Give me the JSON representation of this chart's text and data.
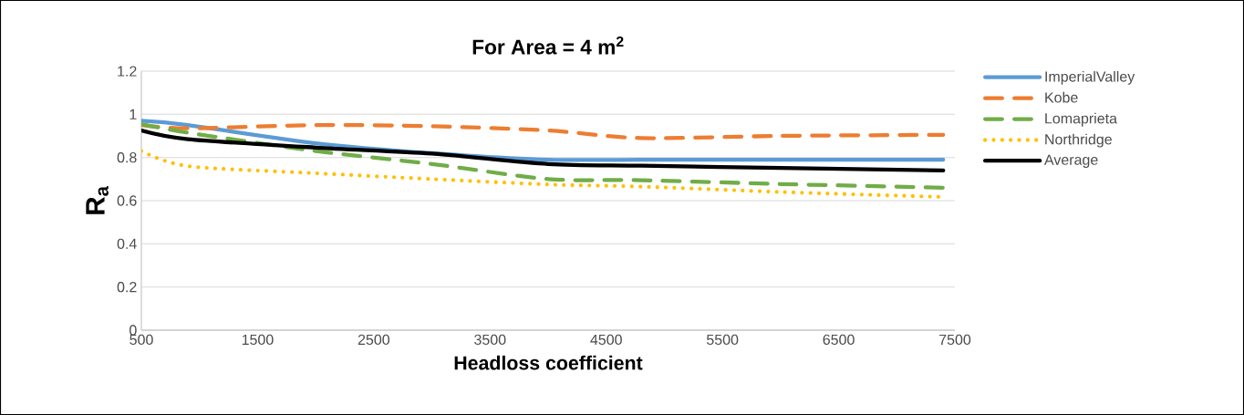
{
  "chart_data": {
    "type": "line",
    "title": "For Area = 4 m$^{2}$",
    "xlabel": "Headloss coefficient",
    "ylabel": "R$_{a}$",
    "x": [
      500,
      900,
      2000,
      3000,
      4000,
      4800,
      6000,
      7400
    ],
    "series": [
      {
        "name": "ImperialValley",
        "color": "#5b9bd5",
        "line_style": "solid",
        "values": [
          0.97,
          0.95,
          0.866,
          0.82,
          0.79,
          0.79,
          0.79,
          0.79
        ]
      },
      {
        "name": "Kobe",
        "color": "#ed7d31",
        "line_style": "dashed",
        "values": [
          0.95,
          0.935,
          0.95,
          0.945,
          0.925,
          0.89,
          0.9,
          0.905
        ]
      },
      {
        "name": "Lomaprieta",
        "color": "#70ad47",
        "line_style": "dashed",
        "values": [
          0.955,
          0.915,
          0.83,
          0.77,
          0.7,
          0.695,
          0.677,
          0.66
        ]
      },
      {
        "name": "Northridge",
        "color": "#ffc000",
        "line_style": "dotted",
        "values": [
          0.83,
          0.76,
          0.727,
          0.7,
          0.675,
          0.665,
          0.64,
          0.617
        ]
      },
      {
        "name": "Average",
        "color": "#000000",
        "line_style": "solid",
        "values": [
          0.925,
          0.885,
          0.846,
          0.818,
          0.77,
          0.762,
          0.752,
          0.74
        ]
      }
    ],
    "xlim": [
      500,
      7500
    ],
    "xticks": [
      500,
      1500,
      2500,
      3500,
      4500,
      5500,
      6500,
      7500
    ],
    "ylim": [
      0,
      1.2
    ],
    "yticks": [
      0,
      {
        "value": 0.2,
        "label": "0.2"
      },
      {
        "value": 0.4,
        "label": "0.4"
      },
      {
        "value": 0.6,
        "label": "0.6"
      },
      {
        "value": 0.8,
        "label": "0.8"
      },
      1,
      {
        "value": 1.2,
        "label": "1.2"
      }
    ],
    "grid": "y",
    "legend": "right",
    "marker": "none"
  }
}
